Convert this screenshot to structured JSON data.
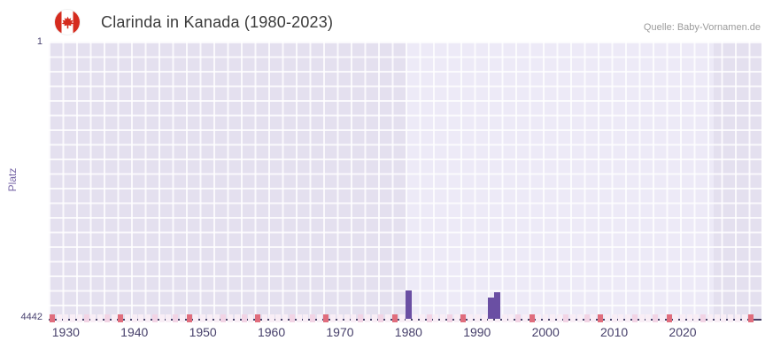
{
  "header": {
    "title": "Clarinda in Kanada (1980-2023)",
    "source": "Quelle: Baby-Vornamen.de"
  },
  "chart_data": {
    "type": "bar",
    "title": "Clarinda in Kanada (1980-2023)",
    "xlabel": "",
    "ylabel": "Platz",
    "x_range": [
      1927.5,
      2031.5
    ],
    "x_ticks": [
      1930,
      1940,
      1950,
      1960,
      1970,
      1980,
      1990,
      2000,
      2010,
      2020
    ],
    "y_range": [
      1,
      4442
    ],
    "y_ticks": [
      1,
      4442
    ],
    "y_axis_inverted": true,
    "grid": true,
    "legend_position": "none",
    "highlight_band": {
      "from": 1979.5,
      "to": 2024.5
    },
    "series": [
      {
        "name": "Platz",
        "type": "bar",
        "color": "#6a4fa3",
        "points": [
          {
            "year": 1980,
            "rank": 3990
          },
          {
            "year": 1992,
            "rank": 4100
          },
          {
            "year": 1993,
            "rank": 4015
          }
        ]
      }
    ],
    "bottom_strip": {
      "year_start": 1928,
      "year_end": 2030,
      "pale_color": "#f9eef6",
      "medium_color": "#f2d4e5",
      "dark_color": "#e06d7d",
      "medium_years": [
        1933,
        1936,
        1943,
        1946,
        1953,
        1956,
        1963,
        1966,
        1973,
        1976,
        1983,
        1986,
        1996,
        2003,
        2006,
        2013,
        2016,
        2023
      ],
      "dark_years": [
        1928,
        1938,
        1948,
        1958,
        1968,
        1978,
        1988,
        1998,
        2008,
        2018,
        2030
      ]
    }
  },
  "colors": {
    "plot_bg": "#e4e0ef",
    "band_bg": "#edeaf7",
    "grid_line": "#ffffff",
    "axis_line": "#463e66",
    "bar": "#6a4fa3",
    "tick_text": "#47406b",
    "y_label": "#7968a8",
    "title_text": "#3b3b3b",
    "source_text": "#9b9b9b",
    "flag_red": "#d52b1e"
  }
}
